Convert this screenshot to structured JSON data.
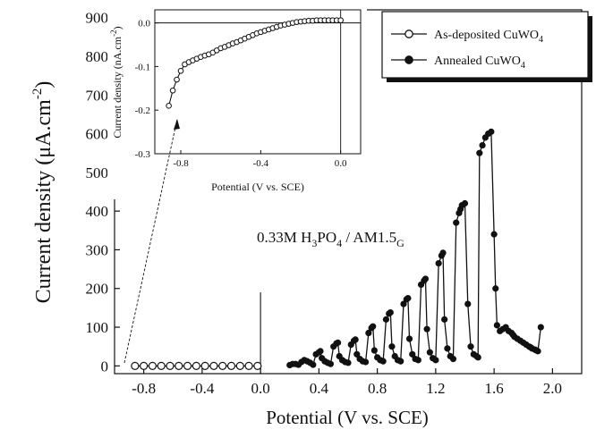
{
  "chart_data": [
    {
      "type": "line",
      "xlabel": "Potential (V vs. SCE)",
      "ylabel_main": "Current density (μA.cm",
      "ylabel_sup": "-2",
      "ylabel_close": ")",
      "xlim": [
        -1.0,
        2.2
      ],
      "ylim": [
        -20,
        920
      ],
      "xticks": [
        -0.8,
        -0.4,
        0.0,
        0.4,
        0.8,
        1.2,
        1.6,
        2.0
      ],
      "xtick_labels": [
        "-0.8",
        "-0.4",
        "0.0",
        "0.4",
        "0.8",
        "1.2",
        "1.6",
        "2.0"
      ],
      "yticks": [
        0,
        100,
        200,
        300,
        400,
        500,
        600,
        700,
        800,
        900
      ],
      "ytick_labels": [
        "0",
        "100",
        "200",
        "300",
        "400",
        "500",
        "600",
        "700",
        "800",
        "900"
      ],
      "annotation": {
        "pre": "0.33M H",
        "sub1": "3",
        "mid": "PO",
        "sub2": "4",
        "post": " / AM1.5",
        "sub3": "G"
      },
      "legend": {
        "placement": "top-right",
        "entries": [
          {
            "name_pre": "As-deposited CuWO",
            "name_sub": "4",
            "marker": "open-circle"
          },
          {
            "name_pre": "Annealed CuWO",
            "name_sub": "4",
            "marker": "filled-circle"
          }
        ]
      },
      "series": [
        {
          "name": "As-deposited CuWO4",
          "marker": "open-circle",
          "x": [
            -0.86,
            -0.8,
            -0.74,
            -0.68,
            -0.62,
            -0.56,
            -0.5,
            -0.44,
            -0.38,
            -0.32,
            -0.26,
            -0.2,
            -0.14,
            -0.08,
            -0.02
          ],
          "y": [
            0,
            0,
            0,
            0,
            0,
            0,
            0,
            0,
            0,
            0,
            0,
            0,
            0,
            0,
            0
          ]
        },
        {
          "name": "Annealed CuWO4",
          "marker": "filled-circle",
          "x": [
            0.2,
            0.22,
            0.24,
            0.26,
            0.28,
            0.3,
            0.32,
            0.34,
            0.36,
            0.38,
            0.4,
            0.41,
            0.42,
            0.44,
            0.46,
            0.48,
            0.5,
            0.52,
            0.53,
            0.54,
            0.56,
            0.58,
            0.6,
            0.62,
            0.64,
            0.65,
            0.66,
            0.68,
            0.7,
            0.72,
            0.74,
            0.76,
            0.77,
            0.78,
            0.8,
            0.82,
            0.84,
            0.86,
            0.88,
            0.89,
            0.9,
            0.92,
            0.94,
            0.96,
            0.98,
            1.0,
            1.01,
            1.02,
            1.04,
            1.06,
            1.08,
            1.1,
            1.12,
            1.13,
            1.14,
            1.16,
            1.18,
            1.2,
            1.22,
            1.24,
            1.25,
            1.26,
            1.28,
            1.3,
            1.32,
            1.34,
            1.36,
            1.37,
            1.38,
            1.4,
            1.42,
            1.44,
            1.46,
            1.48,
            1.49,
            1.5,
            1.52,
            1.54,
            1.56,
            1.58,
            1.6,
            1.61,
            1.62,
            1.64,
            1.66,
            1.68,
            1.7,
            1.72,
            1.73,
            1.74,
            1.76,
            1.78,
            1.8,
            1.82,
            1.84,
            1.85,
            1.86,
            1.88,
            1.89,
            1.9,
            1.92
          ],
          "y": [
            2,
            5,
            5,
            3,
            10,
            15,
            12,
            8,
            3,
            30,
            35,
            38,
            20,
            12,
            8,
            5,
            50,
            58,
            60,
            25,
            15,
            10,
            8,
            55,
            65,
            68,
            30,
            18,
            12,
            10,
            85,
            98,
            102,
            40,
            22,
            15,
            12,
            120,
            135,
            138,
            50,
            25,
            15,
            12,
            160,
            172,
            175,
            70,
            30,
            18,
            15,
            210,
            220,
            225,
            95,
            35,
            20,
            15,
            265,
            285,
            292,
            120,
            45,
            25,
            18,
            370,
            395,
            405,
            415,
            420,
            160,
            50,
            30,
            25,
            22,
            550,
            570,
            590,
            600,
            605,
            340,
            200,
            105,
            90,
            95,
            100,
            90,
            85,
            80,
            75,
            70,
            65,
            60,
            55,
            50,
            48,
            45,
            42,
            40,
            38,
            100
          ]
        }
      ]
    },
    {
      "type": "line",
      "xlabel": "Potential (V vs. SCE)",
      "ylabel": "Current density (nA.cm",
      "ylabel_sup": "-2",
      "ylabel_close": ")",
      "xlim": [
        -0.93,
        0.1
      ],
      "ylim": [
        -0.3,
        0.03
      ],
      "xticks": [
        -0.8,
        -0.4,
        0.0
      ],
      "xtick_labels": [
        "-0.8",
        "-0.4",
        "0.0"
      ],
      "yticks": [
        0.0,
        -0.1,
        -0.2,
        -0.3
      ],
      "ytick_labels": [
        "0.0",
        "-0.1",
        "-0.2",
        "-0.3"
      ],
      "series": [
        {
          "name": "As-deposited CuWO4 (inset)",
          "marker": "open-circle",
          "x": [
            -0.86,
            -0.84,
            -0.82,
            -0.8,
            -0.78,
            -0.76,
            -0.74,
            -0.72,
            -0.7,
            -0.68,
            -0.66,
            -0.64,
            -0.62,
            -0.6,
            -0.58,
            -0.56,
            -0.54,
            -0.52,
            -0.5,
            -0.48,
            -0.46,
            -0.44,
            -0.42,
            -0.4,
            -0.38,
            -0.36,
            -0.34,
            -0.32,
            -0.3,
            -0.28,
            -0.26,
            -0.24,
            -0.22,
            -0.2,
            -0.18,
            -0.16,
            -0.14,
            -0.12,
            -0.1,
            -0.08,
            -0.06,
            -0.04,
            -0.02,
            0.0
          ],
          "y": [
            -0.19,
            -0.155,
            -0.13,
            -0.11,
            -0.095,
            -0.09,
            -0.086,
            -0.082,
            -0.078,
            -0.075,
            -0.072,
            -0.068,
            -0.063,
            -0.058,
            -0.055,
            -0.051,
            -0.047,
            -0.044,
            -0.04,
            -0.036,
            -0.032,
            -0.028,
            -0.024,
            -0.021,
            -0.018,
            -0.015,
            -0.012,
            -0.009,
            -0.006,
            -0.004,
            -0.002,
            0.0,
            0.002,
            0.003,
            0.004,
            0.005,
            0.005,
            0.006,
            0.006,
            0.006,
            0.006,
            0.006,
            0.006,
            0.006
          ]
        }
      ]
    }
  ]
}
